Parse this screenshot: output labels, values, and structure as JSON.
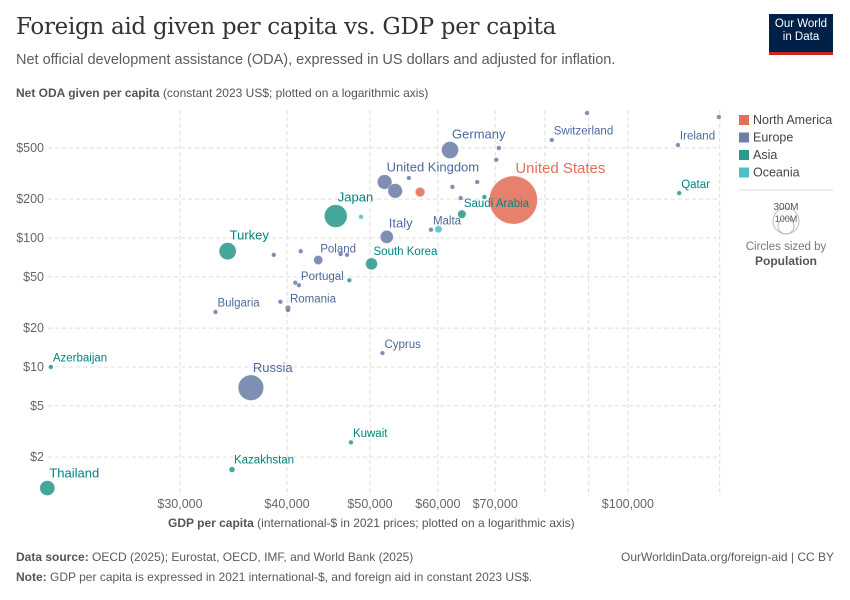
{
  "header": {
    "title": "Foreign aid given per capita vs. GDP per capita",
    "subtitle": "Net official development assistance (ODA), expressed in US dollars and adjusted for inflation.",
    "logo": "Our World in Data"
  },
  "footer": {
    "source_label": "Data source:",
    "source": "OECD (2025); Eurostat, OECD, IMF, and World Bank (2025)",
    "url": "OurWorldinData.org/foreign-aid | CC BY",
    "note_label": "Note:",
    "note": "GDP per capita is expressed in 2021 international-$, and foreign aid in constant 2023 US$."
  },
  "chart_data": {
    "type": "scatter",
    "xlabel_bold": "GDP per capita",
    "xlabel": "(international-$ in 2021 prices; plotted on a logarithmic axis)",
    "ylabel_bold": "Net ODA given per capita",
    "ylabel": "(constant 2023 US$; plotted on a logarithmic axis)",
    "x_scale": "log",
    "y_scale": "log",
    "xlim": [
      21000,
      128000
    ],
    "ylim": [
      1,
      950
    ],
    "grid": true,
    "x_ticks": [
      {
        "v": 30000,
        "l": "$30,000"
      },
      {
        "v": 40000,
        "l": "$40,000"
      },
      {
        "v": 50000,
        "l": "$50,000"
      },
      {
        "v": 60000,
        "l": "$60,000"
      },
      {
        "v": 70000,
        "l": "$70,000"
      },
      {
        "v": 100000,
        "l": "$100,000"
      }
    ],
    "x_grid_extra": [
      80000,
      90000,
      128000
    ],
    "y_ticks": [
      {
        "v": 500,
        "l": "$500"
      },
      {
        "v": 200,
        "l": "$200"
      },
      {
        "v": 100,
        "l": "$100"
      },
      {
        "v": 50,
        "l": "$50"
      },
      {
        "v": 20,
        "l": "$20"
      },
      {
        "v": 10,
        "l": "$10"
      },
      {
        "v": 5,
        "l": "$5"
      },
      {
        "v": 2,
        "l": "$2"
      }
    ],
    "legend": {
      "position": "right",
      "entries": [
        {
          "name": "North America",
          "color": "#e56e5a"
        },
        {
          "name": "Europe",
          "color": "#6d7fa9"
        },
        {
          "name": "Asia",
          "color": "#2b9a8c"
        },
        {
          "name": "Oceania",
          "color": "#4fc0c7"
        }
      ],
      "size_title": "Circles sized by",
      "size_var": "Population",
      "size_ref": [
        "300M",
        "100M"
      ]
    },
    "points": [
      {
        "label": "Thailand",
        "region": "Asia",
        "gdp": 21000,
        "oda": 1.15,
        "pop": 71
      },
      {
        "label": "Azerbaijan",
        "region": "Asia",
        "gdp": 21200,
        "oda": 10,
        "pop": 10
      },
      {
        "label": "Kazakhstan",
        "region": "Asia",
        "gdp": 34500,
        "oda": 1.6,
        "pop": 20
      },
      {
        "label": "Russia",
        "region": "Europe",
        "gdp": 36300,
        "oda": 6.9,
        "pop": 144
      },
      {
        "label": "Kuwait",
        "region": "Asia",
        "gdp": 47500,
        "oda": 2.6,
        "pop": 4.3
      },
      {
        "label": "Cyprus",
        "region": "Europe",
        "gdp": 51700,
        "oda": 12.8,
        "pop": 1.3
      },
      {
        "label": "Bulgaria",
        "region": "Europe",
        "gdp": 33000,
        "oda": 26.7,
        "pop": 6.4
      },
      {
        "label": "Romania",
        "region": "Europe",
        "gdp": 40100,
        "oda": 28.6,
        "pop": 19
      },
      {
        "label": "",
        "region": "Europe",
        "gdp": 40100,
        "oda": 27.6,
        "pop": 10
      },
      {
        "label": "",
        "region": "Europe",
        "gdp": 39300,
        "oda": 32,
        "pop": 5
      },
      {
        "label": "Portugal",
        "region": "Europe",
        "gdp": 41300,
        "oda": 43,
        "pop": 10.4
      },
      {
        "label": "",
        "region": "Europe",
        "gdp": 40900,
        "oda": 45,
        "pop": 4
      },
      {
        "label": "",
        "region": "Asia",
        "gdp": 47300,
        "oda": 47,
        "pop": 4
      },
      {
        "label": "Turkey",
        "region": "Asia",
        "gdp": 34100,
        "oda": 79,
        "pop": 85
      },
      {
        "label": "",
        "region": "Europe",
        "gdp": 38600,
        "oda": 74,
        "pop": 2
      },
      {
        "label": "",
        "region": "Europe",
        "gdp": 41500,
        "oda": 79,
        "pop": 2
      },
      {
        "label": "Poland",
        "region": "Europe",
        "gdp": 43500,
        "oda": 67.5,
        "pop": 37
      },
      {
        "label": "",
        "region": "Europe",
        "gdp": 47000,
        "oda": 74,
        "pop": 11
      },
      {
        "label": "",
        "region": "Europe",
        "gdp": 46200,
        "oda": 75,
        "pop": 5
      },
      {
        "label": "South Korea",
        "region": "Asia",
        "gdp": 50200,
        "oda": 63,
        "pop": 52
      },
      {
        "label": "Japan",
        "region": "Asia",
        "gdp": 45600,
        "oda": 148,
        "pop": 124
      },
      {
        "label": "",
        "region": "Oceania",
        "gdp": 48800,
        "oda": 146,
        "pop": 5.2
      },
      {
        "label": "Italy",
        "region": "Europe",
        "gdp": 52300,
        "oda": 102,
        "pop": 59
      },
      {
        "label": "United Kingdom",
        "region": "Europe",
        "gdp": 52000,
        "oda": 272,
        "pop": 68
      },
      {
        "label": "",
        "region": "Europe",
        "gdp": 53500,
        "oda": 232,
        "pop": 68
      },
      {
        "label": "",
        "region": "Europe",
        "gdp": 55500,
        "oda": 292,
        "pop": 5.5
      },
      {
        "label": "",
        "region": "North America",
        "gdp": 57200,
        "oda": 227,
        "pop": 39
      },
      {
        "label": "Germany",
        "region": "Europe",
        "gdp": 62000,
        "oda": 481,
        "pop": 84
      },
      {
        "label": "",
        "region": "Europe",
        "gdp": 62400,
        "oda": 249,
        "pop": 9
      },
      {
        "label": "",
        "region": "Europe",
        "gdp": 66700,
        "oda": 272,
        "pop": 3
      },
      {
        "label": "",
        "region": "Europe",
        "gdp": 63800,
        "oda": 204,
        "pop": 5
      },
      {
        "label": "",
        "region": "Asia",
        "gdp": 68000,
        "oda": 208,
        "pop": 4
      },
      {
        "label": "Saudi Arabia",
        "region": "Asia",
        "gdp": 64000,
        "oda": 153,
        "pop": 33
      },
      {
        "label": "Malta",
        "region": "Europe",
        "gdp": 58900,
        "oda": 116,
        "pop": 0.5
      },
      {
        "label": "",
        "region": "Oceania",
        "gdp": 60100,
        "oda": 117,
        "pop": 27
      },
      {
        "label": "",
        "region": "Europe",
        "gdp": 70200,
        "oda": 404,
        "pop": 10.5
      },
      {
        "label": "",
        "region": "Europe",
        "gdp": 70700,
        "oda": 499,
        "pop": 5.9
      },
      {
        "label": "Switzerland",
        "region": "Europe",
        "gdp": 81500,
        "oda": 575,
        "pop": 8.9
      },
      {
        "label": "",
        "region": "Europe",
        "gdp": 89600,
        "oda": 933,
        "pop": 5.5
      },
      {
        "label": "Ireland",
        "region": "Europe",
        "gdp": 114400,
        "oda": 526,
        "pop": 5.3
      },
      {
        "label": "",
        "region": "Europe",
        "gdp": 127700,
        "oda": 868,
        "pop": 0.7
      },
      {
        "label": "Qatar",
        "region": "Asia",
        "gdp": 114800,
        "oda": 223,
        "pop": 2.7
      },
      {
        "label": "United States",
        "region": "North America",
        "gdp": 73500,
        "oda": 197,
        "pop": 335
      }
    ]
  }
}
